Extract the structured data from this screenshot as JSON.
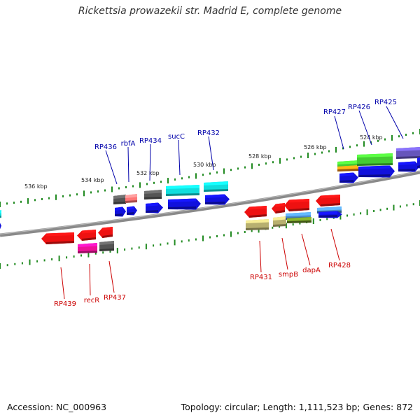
{
  "title": "Rickettsia prowazekii str. Madrid E, complete genome",
  "footer": {
    "accession": "Accession: NC_000963",
    "summary": "Topology: circular; Length: 1,111,523 bp; Genes: 872"
  },
  "ticks": [
    "536 kbp",
    "534 kbp",
    "532 kbp",
    "530 kbp",
    "528 kbp",
    "526 kbp",
    "524 kbp"
  ],
  "genes_top": [
    {
      "label": "RP436",
      "color": "#0000aa"
    },
    {
      "label": "rbfA",
      "color": "#0000aa"
    },
    {
      "label": "RP434",
      "color": "#0000aa"
    },
    {
      "label": "sucC",
      "color": "#0000aa"
    },
    {
      "label": "RP432",
      "color": "#0000aa"
    },
    {
      "label": "RP427",
      "color": "#0000aa"
    },
    {
      "label": "RP426",
      "color": "#0000aa"
    },
    {
      "label": "RP425",
      "color": "#0000aa"
    }
  ],
  "genes_bottom": [
    {
      "label": "RP439",
      "color": "#cc0000"
    },
    {
      "label": "recR",
      "color": "#cc0000"
    },
    {
      "label": "RP437",
      "color": "#cc0000"
    },
    {
      "label": "RP431",
      "color": "#cc0000"
    },
    {
      "label": "smpB",
      "color": "#cc0000"
    },
    {
      "label": "dapA",
      "color": "#cc0000"
    },
    {
      "label": "RP428",
      "color": "#cc0000"
    }
  ],
  "colors": {
    "backbone": "#808080",
    "tick_dots": "#228b22",
    "red": "#ee1111",
    "blue": "#1111dd",
    "cyan": "#11dddd",
    "grey": "#555555",
    "pink": "#ff7777",
    "magenta": "#ee1199",
    "olive": "#b8b070",
    "steel": "#4a8acb",
    "green": "#44cc33",
    "orange": "#ee8811",
    "purple": "#6655bb",
    "darkolive": "#668822"
  }
}
